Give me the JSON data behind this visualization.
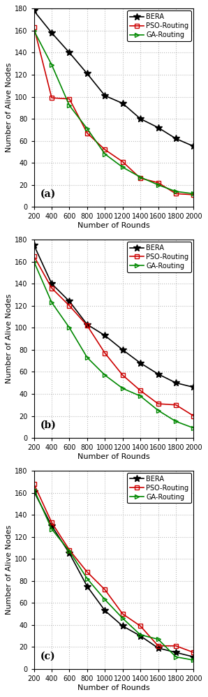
{
  "x": [
    200,
    400,
    600,
    800,
    1000,
    1200,
    1400,
    1600,
    1800,
    2000
  ],
  "subplot_a": {
    "BERA": [
      178,
      158,
      140,
      121,
      101,
      94,
      80,
      72,
      62,
      55
    ],
    "PSO_Routing": [
      163,
      99,
      98,
      67,
      52,
      41,
      26,
      22,
      12,
      11
    ],
    "GA_Routing": [
      160,
      129,
      92,
      71,
      48,
      36,
      27,
      20,
      14,
      12
    ],
    "label": "(a)"
  },
  "subplot_b": {
    "BERA": [
      175,
      140,
      124,
      103,
      93,
      80,
      68,
      58,
      50,
      46
    ],
    "PSO_Routing": [
      165,
      136,
      120,
      102,
      77,
      57,
      43,
      31,
      30,
      20
    ],
    "GA_Routing": [
      160,
      123,
      100,
      73,
      57,
      45,
      38,
      25,
      15,
      9
    ],
    "label": "(b)"
  },
  "subplot_c": {
    "BERA": [
      161,
      130,
      105,
      75,
      53,
      39,
      30,
      19,
      15,
      11
    ],
    "PSO_Routing": [
      168,
      133,
      108,
      88,
      72,
      50,
      39,
      21,
      21,
      15
    ],
    "GA_Routing": [
      163,
      127,
      107,
      82,
      63,
      46,
      31,
      27,
      11,
      8
    ],
    "label": "(c)"
  },
  "bera_color": "#000000",
  "pso_color": "#cc0000",
  "ga_color": "#008800",
  "bera_marker": "*",
  "pso_marker": "s",
  "ga_marker": ">",
  "xlabel": "Number of Rounds",
  "ylabel": "Number of Alive Nodes",
  "ylim": [
    0,
    180
  ],
  "xlim": [
    200,
    2000
  ],
  "yticks": [
    0,
    20,
    40,
    60,
    80,
    100,
    120,
    140,
    160,
    180
  ],
  "xticks": [
    200,
    400,
    600,
    800,
    1000,
    1200,
    1400,
    1600,
    1800,
    2000
  ],
  "legend_labels": [
    "BERA",
    "PSO-Routing",
    "GA-Routing"
  ],
  "bg_color": "#ffffff",
  "grid_color": "#bbbbbb",
  "linewidth": 1.2,
  "markersize_bera": 7,
  "markersize_pso": 5,
  "markersize_ga": 5,
  "fontsize_label": 8,
  "fontsize_tick": 7,
  "fontsize_legend": 7,
  "fontsize_subplot_label": 10
}
